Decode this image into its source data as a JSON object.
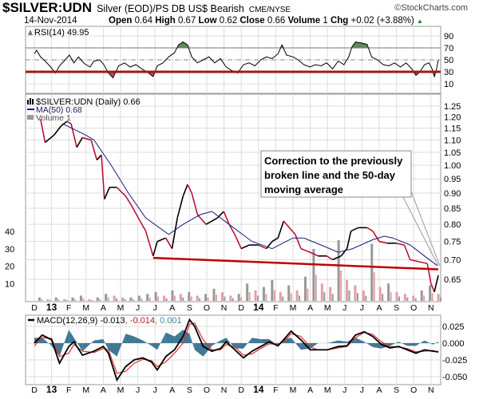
{
  "header": {
    "symbol": "$SILVER:UDN",
    "description": "Silver (EOD)/PS DB US$ Bearish",
    "exchange": "CME/NYSE",
    "brand": "©StockCharts.com",
    "date": "14-Nov-2014",
    "open_label": "Open",
    "open": "0.64",
    "high_label": "High",
    "high": "0.67",
    "low_label": "Low",
    "low": "0.62",
    "close_label": "Close",
    "close": "0.66",
    "volume_label": "Volume",
    "volume": "1",
    "chg_label": "Chg",
    "chg": "+0.02 (+3.88%)",
    "chg_icon": "up-triangle-icon"
  },
  "colors": {
    "price_up": "#000000",
    "price_down": "#c0103a",
    "ma": "#1a1a7a",
    "trendline": "#c00000",
    "rsi_fill_high": "#5d8a5d",
    "rsi_fill_low": "#c05060",
    "macd": "#000000",
    "signal": "#e03030",
    "histogram": "#2a6a8a",
    "volume_up": "#999999",
    "volume_down": "#e4a0a8",
    "grid": "#dddddd"
  },
  "annotation": {
    "lines": [
      "Correction to the previously",
      "broken line and the 50-day",
      "moving average"
    ]
  },
  "chart_data": [
    {
      "type": "line",
      "panel": "RSI",
      "legend": "RSI(14) 49.95",
      "y_ticks": [
        "90",
        "70",
        "50",
        "30",
        "10"
      ],
      "ylim": [
        0,
        100
      ],
      "reference_lines": [
        70,
        50,
        30
      ],
      "series": [
        {
          "name": "RSI(14)",
          "points": [
            [
              "2012-12-01",
              60
            ],
            [
              "2012-12-05",
              66
            ],
            [
              "2012-12-12",
              55
            ],
            [
              "2012-12-20",
              48
            ],
            [
              "2012-12-28",
              40
            ],
            [
              "2013-01-08",
              28
            ],
            [
              "2013-01-15",
              40
            ],
            [
              "2013-01-25",
              50
            ],
            [
              "2013-02-02",
              58
            ],
            [
              "2013-02-10",
              45
            ],
            [
              "2013-02-18",
              55
            ],
            [
              "2013-02-28",
              44
            ],
            [
              "2013-03-08",
              38
            ],
            [
              "2013-03-15",
              48
            ],
            [
              "2013-03-25",
              50
            ],
            [
              "2013-04-02",
              42
            ],
            [
              "2013-04-10",
              28
            ],
            [
              "2013-04-18",
              20
            ],
            [
              "2013-04-28",
              40
            ],
            [
              "2013-05-08",
              45
            ],
            [
              "2013-05-18",
              38
            ],
            [
              "2013-05-28",
              42
            ],
            [
              "2013-06-08",
              35
            ],
            [
              "2013-06-20",
              28
            ],
            [
              "2013-06-28",
              22
            ],
            [
              "2013-07-05",
              40
            ],
            [
              "2013-07-15",
              45
            ],
            [
              "2013-07-25",
              55
            ],
            [
              "2013-08-05",
              62
            ],
            [
              "2013-08-12",
              75
            ],
            [
              "2013-08-20",
              80
            ],
            [
              "2013-08-28",
              75
            ],
            [
              "2013-09-05",
              55
            ],
            [
              "2013-09-15",
              45
            ],
            [
              "2013-09-25",
              50
            ],
            [
              "2013-10-05",
              55
            ],
            [
              "2013-10-15",
              45
            ],
            [
              "2013-10-25",
              52
            ],
            [
              "2013-11-05",
              38
            ],
            [
              "2013-11-15",
              32
            ],
            [
              "2013-11-25",
              28
            ],
            [
              "2013-12-05",
              42
            ],
            [
              "2013-12-15",
              45
            ],
            [
              "2013-12-25",
              40
            ],
            [
              "2014-01-05",
              50
            ],
            [
              "2014-01-15",
              55
            ],
            [
              "2014-01-25",
              52
            ],
            [
              "2014-02-05",
              60
            ],
            [
              "2014-02-12",
              75
            ],
            [
              "2014-02-20",
              58
            ],
            [
              "2014-03-01",
              55
            ],
            [
              "2014-03-10",
              50
            ],
            [
              "2014-03-20",
              42
            ],
            [
              "2014-03-31",
              38
            ],
            [
              "2014-04-10",
              42
            ],
            [
              "2014-04-20",
              40
            ],
            [
              "2014-04-30",
              45
            ],
            [
              "2014-05-10",
              35
            ],
            [
              "2014-05-20",
              48
            ],
            [
              "2014-05-30",
              42
            ],
            [
              "2014-06-08",
              55
            ],
            [
              "2014-06-14",
              72
            ],
            [
              "2014-06-20",
              80
            ],
            [
              "2014-07-01",
              78
            ],
            [
              "2014-07-10",
              76
            ],
            [
              "2014-07-18",
              55
            ],
            [
              "2014-07-28",
              50
            ],
            [
              "2014-08-08",
              42
            ],
            [
              "2014-08-18",
              40
            ],
            [
              "2014-08-28",
              45
            ],
            [
              "2014-09-08",
              38
            ],
            [
              "2014-09-18",
              45
            ],
            [
              "2014-09-28",
              35
            ],
            [
              "2014-10-05",
              24
            ],
            [
              "2014-10-12",
              30
            ],
            [
              "2014-10-20",
              42
            ],
            [
              "2014-10-28",
              45
            ],
            [
              "2014-11-03",
              35
            ],
            [
              "2014-11-07",
              22
            ],
            [
              "2014-11-11",
              35
            ],
            [
              "2014-11-14",
              49.95
            ]
          ]
        }
      ]
    },
    {
      "type": "line",
      "panel": "Price",
      "legend": [
        "$SILVER:UDN (Daily) 0.66",
        "MA(50) 0.68",
        "Volume 1"
      ],
      "y_scale": "log",
      "y_ticks": [
        "1.25",
        "1.20",
        "1.15",
        "1.10",
        "1.05",
        "1.00",
        "0.95",
        "0.90",
        "0.85",
        "0.80",
        "0.75",
        "0.70",
        "0.65"
      ],
      "volume_ticks": [
        "40",
        "30",
        "20",
        "10"
      ],
      "series": [
        {
          "name": "$SILVER:UDN (Daily)",
          "points": [
            [
              "2012-12-12",
              1.19
            ],
            [
              "2012-12-20",
              1.09
            ],
            [
              "2013-01-05",
              1.12
            ],
            [
              "2013-01-18",
              1.16
            ],
            [
              "2013-01-28",
              1.18
            ],
            [
              "2013-02-05",
              1.17
            ],
            [
              "2013-02-15",
              1.07
            ],
            [
              "2013-02-25",
              1.11
            ],
            [
              "2013-03-10",
              1.1
            ],
            [
              "2013-03-20",
              1.02
            ],
            [
              "2013-03-28",
              1.04
            ],
            [
              "2013-04-03",
              0.88
            ],
            [
              "2013-04-12",
              0.92
            ],
            [
              "2013-04-25",
              0.92
            ],
            [
              "2013-05-10",
              0.89
            ],
            [
              "2013-05-20",
              0.86
            ],
            [
              "2013-06-05",
              0.81
            ],
            [
              "2013-06-15",
              0.78
            ],
            [
              "2013-06-28",
              0.71
            ],
            [
              "2013-07-05",
              0.75
            ],
            [
              "2013-07-20",
              0.76
            ],
            [
              "2013-07-31",
              0.73
            ],
            [
              "2013-08-10",
              0.82
            ],
            [
              "2013-08-20",
              0.89
            ],
            [
              "2013-08-28",
              0.93
            ],
            [
              "2013-09-05",
              0.9
            ],
            [
              "2013-09-15",
              0.83
            ],
            [
              "2013-09-30",
              0.8
            ],
            [
              "2013-10-10",
              0.81
            ],
            [
              "2013-10-20",
              0.82
            ],
            [
              "2013-10-31",
              0.84
            ],
            [
              "2013-11-10",
              0.8
            ],
            [
              "2013-11-20",
              0.77
            ],
            [
              "2013-12-01",
              0.73
            ],
            [
              "2013-12-15",
              0.74
            ],
            [
              "2013-12-31",
              0.74
            ],
            [
              "2014-01-15",
              0.73
            ],
            [
              "2014-01-25",
              0.75
            ],
            [
              "2014-02-05",
              0.76
            ],
            [
              "2014-02-15",
              0.81
            ],
            [
              "2014-02-25",
              0.79
            ],
            [
              "2014-03-05",
              0.77
            ],
            [
              "2014-03-15",
              0.73
            ],
            [
              "2014-03-31",
              0.72
            ],
            [
              "2014-04-15",
              0.71
            ],
            [
              "2014-04-30",
              0.71
            ],
            [
              "2014-05-10",
              0.7
            ],
            [
              "2014-05-25",
              0.71
            ],
            [
              "2014-06-05",
              0.73
            ],
            [
              "2014-06-12",
              0.78
            ],
            [
              "2014-06-25",
              0.79
            ],
            [
              "2014-07-10",
              0.79
            ],
            [
              "2014-07-20",
              0.78
            ],
            [
              "2014-08-01",
              0.75
            ],
            [
              "2014-08-15",
              0.745
            ],
            [
              "2014-08-31",
              0.745
            ],
            [
              "2014-09-15",
              0.74
            ],
            [
              "2014-09-25",
              0.7
            ],
            [
              "2014-10-10",
              0.695
            ],
            [
              "2014-10-25",
              0.69
            ],
            [
              "2014-11-01",
              0.64
            ],
            [
              "2014-11-07",
              0.62
            ],
            [
              "2014-11-14",
              0.66
            ]
          ]
        },
        {
          "name": "MA(50)",
          "points": [
            [
              "2013-01-20",
              1.17
            ],
            [
              "2013-03-01",
              1.12
            ],
            [
              "2013-03-15",
              1.1
            ],
            [
              "2013-04-15",
              1.0
            ],
            [
              "2013-05-15",
              0.9
            ],
            [
              "2013-06-15",
              0.82
            ],
            [
              "2013-07-25",
              0.77
            ],
            [
              "2013-08-20",
              0.8
            ],
            [
              "2013-09-20",
              0.83
            ],
            [
              "2013-10-10",
              0.84
            ],
            [
              "2013-11-10",
              0.8
            ],
            [
              "2013-12-20",
              0.75
            ],
            [
              "2014-01-25",
              0.73
            ],
            [
              "2014-03-01",
              0.76
            ],
            [
              "2014-03-20",
              0.76
            ],
            [
              "2014-04-20",
              0.74
            ],
            [
              "2014-05-20",
              0.72
            ],
            [
              "2014-06-15",
              0.73
            ],
            [
              "2014-07-20",
              0.755
            ],
            [
              "2014-08-10",
              0.765
            ],
            [
              "2014-08-25",
              0.76
            ],
            [
              "2014-09-25",
              0.74
            ],
            [
              "2014-10-20",
              0.71
            ],
            [
              "2014-11-12",
              0.685
            ]
          ]
        },
        {
          "name": "Volume",
          "start": "2012-12-10",
          "end": "2014-11-14",
          "values": [
            2,
            1,
            2,
            1,
            2,
            3,
            1,
            2,
            4,
            3,
            2,
            2,
            3,
            4,
            5,
            3,
            6,
            4,
            5,
            3,
            4,
            7,
            5,
            3,
            4,
            10,
            6,
            8,
            12,
            5,
            9,
            6,
            14,
            30,
            10,
            8,
            35,
            12,
            9,
            6,
            33,
            8,
            10,
            5,
            4,
            3,
            6,
            9,
            4
          ]
        }
      ],
      "trendline": [
        [
          "2013-06-28",
          0.705
        ],
        [
          "2014-11-14",
          0.675
        ]
      ]
    },
    {
      "type": "line",
      "panel": "MACD",
      "legend": {
        "macd": "MACD(12,26,9) -0.013",
        "signal": ", -0.014",
        "histogram": ", 0.001"
      },
      "y_ticks": [
        "0.025",
        "0.000",
        "-0.025",
        "-0.050"
      ],
      "dates": [
        "2012-12-01",
        "2012-12-15",
        "2013-01-01",
        "2013-01-15",
        "2013-02-01",
        "2013-02-10",
        "2013-02-25",
        "2013-03-15",
        "2013-04-01",
        "2013-04-10",
        "2013-04-25",
        "2013-05-10",
        "2013-05-25",
        "2013-06-10",
        "2013-06-25",
        "2013-07-05",
        "2013-07-20",
        "2013-08-05",
        "2013-08-20",
        "2013-09-01",
        "2013-09-10",
        "2013-09-25",
        "2013-10-10",
        "2013-10-25",
        "2013-11-05",
        "2013-11-20",
        "2013-12-05",
        "2013-12-20",
        "2014-01-05",
        "2014-01-20",
        "2014-02-05",
        "2014-02-15",
        "2014-02-28",
        "2014-03-15",
        "2014-04-01",
        "2014-04-15",
        "2014-05-01",
        "2014-05-20",
        "2014-06-05",
        "2014-06-20",
        "2014-07-05",
        "2014-07-20",
        "2014-08-05",
        "2014-08-20",
        "2014-09-05",
        "2014-09-20",
        "2014-10-05",
        "2014-10-20",
        "2014-11-05",
        "2014-11-14"
      ],
      "series": [
        {
          "name": "MACD",
          "values": [
            0.0,
            0.012,
            0.005,
            -0.03,
            -0.005,
            0.002,
            -0.018,
            -0.012,
            -0.005,
            -0.015,
            -0.055,
            -0.035,
            -0.025,
            -0.022,
            -0.028,
            -0.04,
            -0.02,
            -0.01,
            0.01,
            0.035,
            0.025,
            -0.005,
            -0.012,
            -0.008,
            0.002,
            -0.01,
            -0.022,
            -0.012,
            -0.005,
            0.002,
            -0.004,
            0.005,
            0.018,
            0.005,
            -0.01,
            -0.01,
            -0.01,
            -0.005,
            -0.004,
            0.012,
            0.017,
            0.01,
            -0.002,
            -0.007,
            -0.005,
            -0.01,
            -0.015,
            -0.01,
            -0.012,
            -0.013
          ]
        },
        {
          "name": "Signal",
          "values": [
            -0.004,
            0.008,
            0.007,
            -0.02,
            -0.015,
            -0.002,
            -0.012,
            -0.014,
            -0.008,
            -0.01,
            -0.045,
            -0.042,
            -0.03,
            -0.024,
            -0.026,
            -0.035,
            -0.028,
            -0.015,
            0.0,
            0.028,
            0.03,
            0.005,
            -0.01,
            -0.01,
            -0.002,
            -0.006,
            -0.018,
            -0.016,
            -0.008,
            -0.001,
            -0.002,
            0.002,
            0.014,
            0.01,
            -0.006,
            -0.01,
            -0.01,
            -0.007,
            -0.005,
            0.008,
            0.016,
            0.013,
            0.002,
            -0.005,
            -0.006,
            -0.008,
            -0.013,
            -0.012,
            -0.011,
            -0.014
          ]
        }
      ]
    }
  ],
  "x_axis": {
    "months": [
      "D",
      "13",
      "F",
      "M",
      "A",
      "M",
      "J",
      "J",
      "A",
      "S",
      "O",
      "N",
      "D",
      "14",
      "F",
      "M",
      "A",
      "M",
      "J",
      "J",
      "A",
      "S",
      "O",
      "N"
    ]
  }
}
